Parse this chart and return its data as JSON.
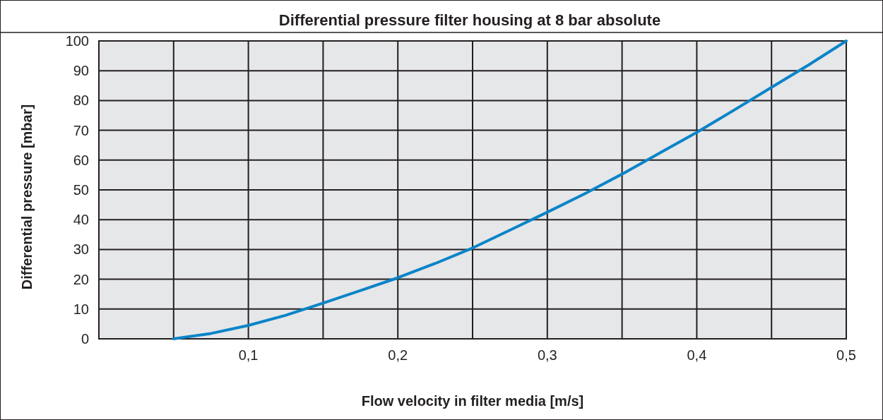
{
  "chart_data": {
    "type": "line",
    "title": "Differential pressure filter housing at 8 bar absolute",
    "xlabel": "Flow velocity in filter media [m/s]",
    "ylabel": "Differential pressure [mbar]",
    "series": [
      {
        "color": "#0a84c8",
        "x": [
          0.05,
          0.075,
          0.1,
          0.125,
          0.15,
          0.175,
          0.2,
          0.225,
          0.25,
          0.275,
          0.3,
          0.325,
          0.35,
          0.375,
          0.4,
          0.425,
          0.45,
          0.475,
          0.5
        ],
        "values": [
          0,
          1.8,
          4.5,
          7.9,
          12,
          16.2,
          20.5,
          25.3,
          30.5,
          36.5,
          42.5,
          48.7,
          55.3,
          62.3,
          69.3,
          76.8,
          84.4,
          92,
          100
        ]
      }
    ],
    "xlim": [
      0,
      0.5
    ],
    "xticks": [
      {
        "value": 0,
        "label": null
      },
      {
        "value": 0.05,
        "label": null
      },
      {
        "value": 0.1,
        "label": "0,1"
      },
      {
        "value": 0.15,
        "label": null
      },
      {
        "value": 0.2,
        "label": "0,2"
      },
      {
        "value": 0.25,
        "label": null
      },
      {
        "value": 0.3,
        "label": "0,3"
      },
      {
        "value": 0.35,
        "label": null
      },
      {
        "value": 0.4,
        "label": "0,4"
      },
      {
        "value": 0.45,
        "label": null
      },
      {
        "value": 0.5,
        "label": "0,5"
      }
    ],
    "ylim": [
      0,
      100
    ],
    "yticks": [
      0,
      10,
      20,
      30,
      40,
      50,
      60,
      70,
      80,
      90,
      100
    ],
    "grid": true,
    "marker": "none",
    "line_style": "solid"
  }
}
